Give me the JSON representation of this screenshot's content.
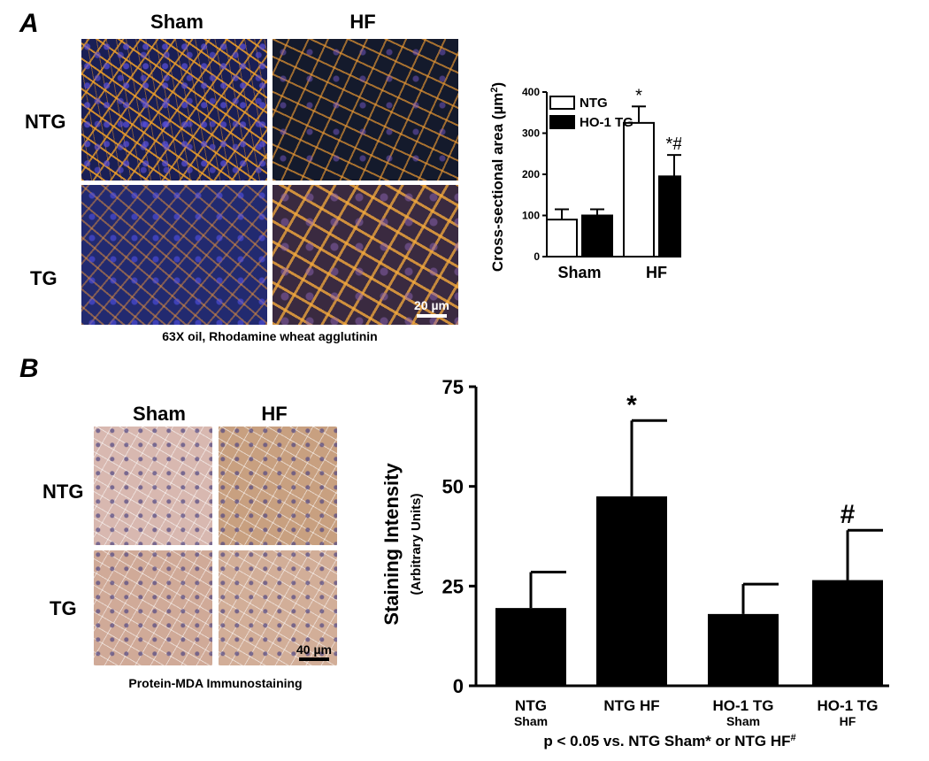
{
  "panel_a": {
    "letter": "A",
    "col_headers": [
      "Sham",
      "HF"
    ],
    "row_headers": [
      "NTG",
      "TG"
    ],
    "scale_bar": "20 µm",
    "caption": "63X oil, Rhodamine wheat agglutinin"
  },
  "panel_b": {
    "letter": "B",
    "col_headers": [
      "Sham",
      "HF"
    ],
    "row_headers": [
      "NTG",
      "TG"
    ],
    "scale_bar": "40 µm",
    "caption": "Protein-MDA Immunostaining"
  },
  "chart_data": [
    {
      "type": "bar",
      "categories": [
        "Sham",
        "HF"
      ],
      "series": [
        {
          "name": "NTG",
          "values": [
            90,
            325
          ],
          "errors": [
            25,
            40
          ],
          "color": "#ffffff"
        },
        {
          "name": "HO-1 TG",
          "values": [
            100,
            195
          ],
          "errors": [
            15,
            52
          ],
          "color": "#000000"
        }
      ],
      "annotations": [
        {
          "category": "HF",
          "series": "NTG",
          "text": "*"
        },
        {
          "category": "HF",
          "series": "HO-1 TG",
          "text": "*#"
        }
      ],
      "ylabel": "Cross-sectional area  (µm²)",
      "ylabel_main": "Cross-sectional area  (µm",
      "ylabel_sup": "2",
      "ylabel_end": ")",
      "ylim": [
        0,
        400
      ],
      "yticks": [
        0,
        100,
        200,
        300,
        400
      ],
      "legend_placement": "top-left"
    },
    {
      "type": "bar",
      "categories": [
        {
          "line1": "NTG",
          "line2": "Sham"
        },
        {
          "line1": "NTG HF",
          "line2": ""
        },
        {
          "line1": "HO-1 TG",
          "line2": "Sham"
        },
        {
          "line1": "HO-1 TG",
          "line2": "HF"
        }
      ],
      "values": [
        19.5,
        47.5,
        18,
        26.5
      ],
      "errors": [
        9,
        19,
        7.5,
        12.5
      ],
      "bar_color": "#000000",
      "annotations": [
        {
          "index": 1,
          "text": "*"
        },
        {
          "index": 3,
          "text": "#"
        }
      ],
      "ylabel": "Staining Intensity",
      "ylabel_sub": "(Arbitrary Units)",
      "ylim": [
        0,
        75
      ],
      "yticks": [
        0,
        25,
        50,
        75
      ],
      "footnote_main": "p < 0.05 vs. NTG Sham* or NTG HF",
      "footnote_sup": "#"
    }
  ]
}
